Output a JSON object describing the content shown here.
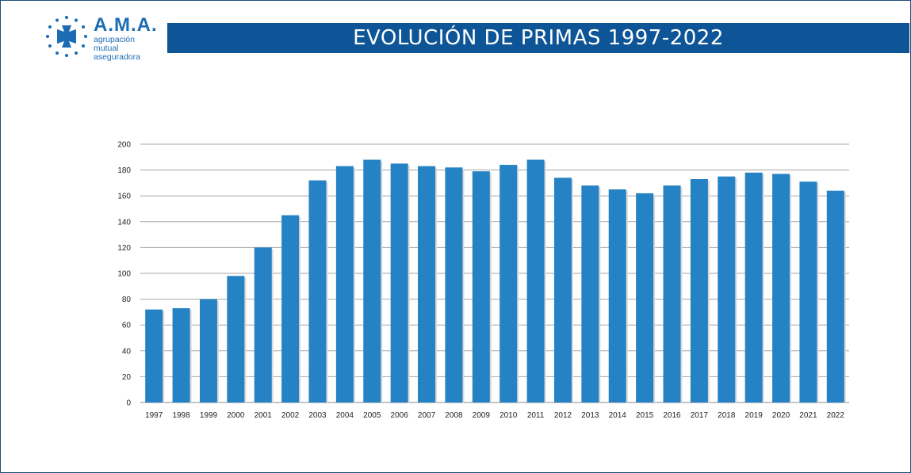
{
  "logo": {
    "name": "A.M.A.",
    "tagline": "agrupación mutual\naseguradora",
    "color": "#1c6cb4"
  },
  "header": {
    "title": "EVOLUCIÓN DE PRIMAS 1997-2022",
    "bar_color": "#0d5597"
  },
  "chart_data": {
    "type": "bar",
    "title": "EVOLUCIÓN DE PRIMAS 1997-2022",
    "xlabel": "",
    "ylabel": "",
    "categories": [
      "1997",
      "1998",
      "1999",
      "2000",
      "2001",
      "2002",
      "2003",
      "2004",
      "2005",
      "2006",
      "2007",
      "2008",
      "2009",
      "2010",
      "2011",
      "2012",
      "2013",
      "2014",
      "2015",
      "2016",
      "2017",
      "2018",
      "2019",
      "2020",
      "2021",
      "2022"
    ],
    "values": [
      72,
      73,
      80,
      98,
      120,
      145,
      172,
      183,
      188,
      185,
      183,
      182,
      179,
      184,
      188,
      174,
      168,
      165,
      162,
      168,
      173,
      175,
      178,
      177,
      171,
      164
    ],
    "ylim": [
      0,
      200
    ],
    "yticks": [
      0,
      20,
      40,
      60,
      80,
      100,
      120,
      140,
      160,
      180,
      200
    ],
    "grid": true,
    "legend": "none",
    "bar_color": "#2582c4"
  }
}
